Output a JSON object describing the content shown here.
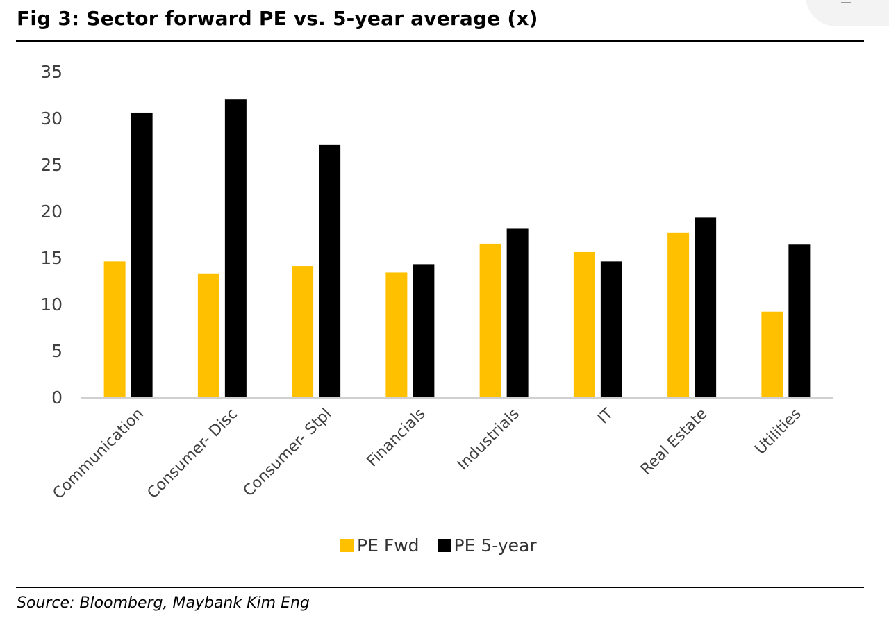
{
  "figure": {
    "title": "Fig 3: Sector forward PE vs. 5-year average (x)",
    "source": "Source: Bloomberg, Maybank Kim Eng"
  },
  "colors": {
    "pe_fwd": "#FFC000",
    "pe_5yr": "#000000",
    "axis_line": "#d0d0d0",
    "tick_text": "#404040"
  },
  "chart_data": {
    "type": "bar",
    "title": "Fig 3: Sector forward PE vs. 5-year average (x)",
    "categories": [
      "Communication",
      "Consumer- Disc",
      "Consumer- Stpl",
      "Financials",
      "Industrials",
      "IT",
      "Real Estate",
      "Utilities"
    ],
    "series": [
      {
        "name": "PE Fwd",
        "values": [
          14.6,
          13.3,
          14.1,
          13.4,
          16.5,
          15.6,
          17.7,
          9.2
        ]
      },
      {
        "name": "PE 5-year",
        "values": [
          30.6,
          32.0,
          27.1,
          14.3,
          18.1,
          14.6,
          19.3,
          16.4
        ]
      }
    ],
    "ylim": [
      0,
      35
    ],
    "yticks": [
      0,
      5,
      10,
      15,
      20,
      25,
      30,
      35
    ],
    "grid": false,
    "legend_position": "bottom"
  }
}
